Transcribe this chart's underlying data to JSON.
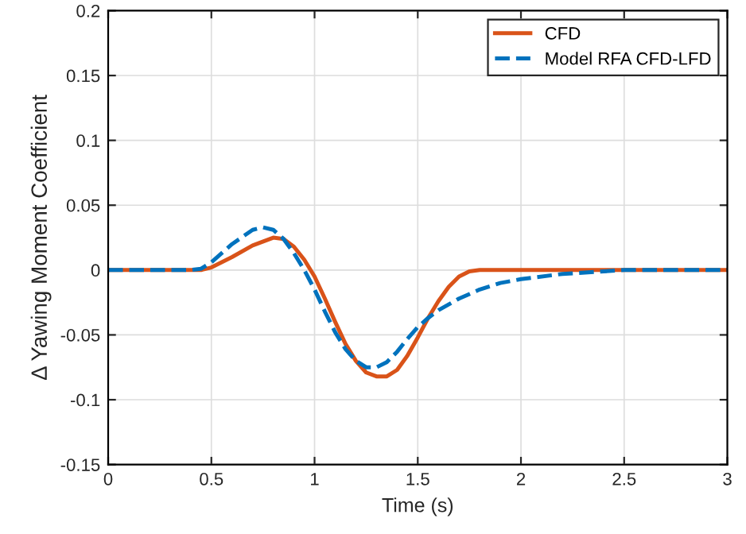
{
  "chart_data": {
    "type": "line",
    "xlabel": "Time (s)",
    "ylabel": "Δ Yawing Moment Coefficient",
    "xlim": [
      0,
      3
    ],
    "xticks": [
      0,
      0.5,
      1,
      1.5,
      2,
      2.5,
      3
    ],
    "ylim": [
      -0.15,
      0.2
    ],
    "yticks": [
      {
        "value": -0.15,
        "label": "-0.15"
      },
      {
        "value": -0.1,
        "label": "-0.1"
      },
      {
        "value": -0.05,
        "label": "-0.05"
      },
      0,
      0.05,
      0.1,
      0.15,
      0.2
    ],
    "grid": true,
    "legend": "top right",
    "series": [
      {
        "name": "CFD",
        "color": "#d95319",
        "line_style": "solid",
        "x": [
          0,
          0.4,
          0.45,
          0.5,
          0.6,
          0.7,
          0.8,
          0.85,
          0.9,
          0.95,
          1.0,
          1.05,
          1.1,
          1.15,
          1.2,
          1.25,
          1.3,
          1.35,
          1.4,
          1.45,
          1.5,
          1.55,
          1.6,
          1.65,
          1.7,
          1.75,
          1.8,
          1.9,
          2.0,
          2.5,
          3.0
        ],
        "values": [
          0,
          0,
          0,
          0.002,
          0.01,
          0.019,
          0.025,
          0.024,
          0.018,
          0.008,
          -0.005,
          -0.022,
          -0.04,
          -0.057,
          -0.07,
          -0.079,
          -0.082,
          -0.082,
          -0.077,
          -0.066,
          -0.052,
          -0.037,
          -0.024,
          -0.013,
          -0.005,
          -0.001,
          0,
          0,
          0,
          0,
          0
        ]
      },
      {
        "name": "Model RFA CFD-LFD",
        "color": "#0072bd",
        "line_style": "dashed",
        "x": [
          0,
          0.4,
          0.45,
          0.5,
          0.6,
          0.7,
          0.75,
          0.8,
          0.85,
          0.9,
          0.95,
          1.0,
          1.05,
          1.1,
          1.15,
          1.2,
          1.25,
          1.3,
          1.35,
          1.4,
          1.45,
          1.5,
          1.55,
          1.6,
          1.7,
          1.8,
          1.9,
          2.0,
          2.2,
          2.5,
          3.0
        ],
        "values": [
          0,
          0,
          0.001,
          0.006,
          0.02,
          0.031,
          0.033,
          0.031,
          0.024,
          0.013,
          0.0,
          -0.015,
          -0.032,
          -0.048,
          -0.061,
          -0.07,
          -0.075,
          -0.075,
          -0.071,
          -0.063,
          -0.053,
          -0.044,
          -0.037,
          -0.031,
          -0.022,
          -0.015,
          -0.01,
          -0.007,
          -0.003,
          0,
          0
        ]
      }
    ]
  }
}
